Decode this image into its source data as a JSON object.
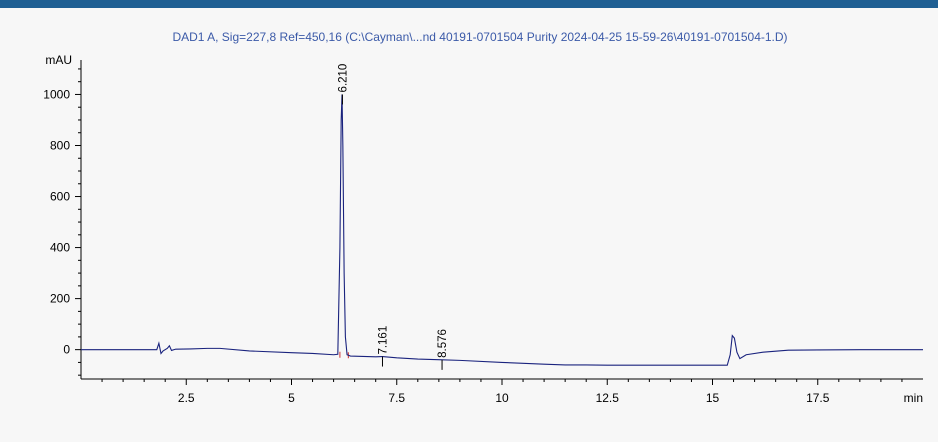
{
  "chart_data": {
    "type": "line",
    "title": "DAD1 A, Sig=227,8 Ref=450,16 (C:\\Cayman\\...nd 40191-0701504 Purity 2024-04-25 15-59-26\\40191-0701504-1.D)",
    "xlabel": "min",
    "ylabel": "mAU",
    "xlim": [
      0,
      20
    ],
    "ylim": [
      -115,
      1135
    ],
    "x_ticks": [
      2.5,
      5,
      7.5,
      10,
      12.5,
      15,
      17.5
    ],
    "x_tick_labels": [
      "2.5",
      "5",
      "7.5",
      "10",
      "12.5",
      "15",
      "17.5"
    ],
    "y_ticks": [
      0,
      200,
      400,
      600,
      800,
      1000
    ],
    "y_tick_labels": [
      "0",
      "200",
      "400",
      "600",
      "800",
      "1000"
    ],
    "grid": false,
    "series": [
      {
        "color": "#1a237e",
        "x": [
          0,
          1.7,
          1.8,
          1.85,
          1.9,
          1.95,
          2.05,
          2.1,
          2.15,
          2.25,
          2.6,
          3.0,
          3.3,
          4.0,
          5.0,
          5.5,
          6.0,
          6.1,
          6.15,
          6.18,
          6.2,
          6.22,
          6.25,
          6.28,
          6.32,
          6.4,
          7.0,
          7.16,
          7.5,
          8.0,
          8.58,
          9.0,
          10.0,
          11.0,
          11.5,
          12.0,
          12.5,
          13.0,
          14.0,
          15.0,
          15.35,
          15.42,
          15.47,
          15.52,
          15.58,
          15.65,
          15.8,
          16.2,
          16.8,
          17.5,
          18.5,
          20.0
        ],
        "y": [
          0,
          0,
          0,
          25,
          -15,
          -5,
          5,
          15,
          -3,
          2,
          3,
          5,
          5,
          -5,
          -12,
          -15,
          -20,
          -18,
          400,
          900,
          1000,
          800,
          300,
          50,
          -20,
          -25,
          -28,
          -27,
          -32,
          -37,
          -40,
          -42,
          -50,
          -57,
          -60,
          -60,
          -61,
          -61,
          -61,
          -61,
          -61,
          -20,
          55,
          45,
          -10,
          -35,
          -20,
          -10,
          -2,
          -1,
          0,
          0
        ]
      }
    ],
    "annotations": [
      {
        "label": "6.210",
        "x": 6.21,
        "y": 1000
      },
      {
        "label": "7.161",
        "x": 7.161,
        "y": -27
      },
      {
        "label": "8.576",
        "x": 8.576,
        "y": -40
      }
    ]
  }
}
